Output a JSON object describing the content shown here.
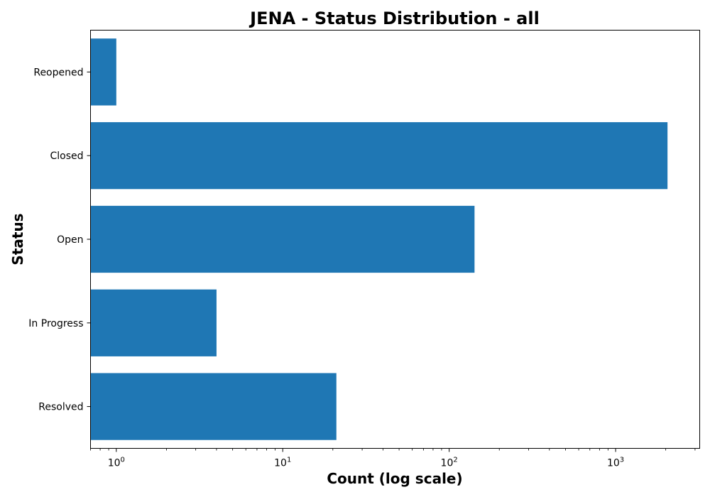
{
  "chart_data": {
    "type": "bar",
    "orientation": "horizontal",
    "title": "JENA - Status Distribution - all",
    "xlabel": "Count (log scale)",
    "ylabel": "Status",
    "x_scale": "log",
    "xlim": [
      0.7,
      3200
    ],
    "categories": [
      "Resolved",
      "In Progress",
      "Open",
      "Closed",
      "Reopened"
    ],
    "values": [
      21,
      4,
      142,
      2050,
      1
    ],
    "x_ticks": [
      {
        "base": "10",
        "exp": "0",
        "value": 1
      },
      {
        "base": "10",
        "exp": "1",
        "value": 10
      },
      {
        "base": "10",
        "exp": "2",
        "value": 100
      },
      {
        "base": "10",
        "exp": "3",
        "value": 1000
      }
    ],
    "bar_color": "#1f77b4",
    "grid": false,
    "legend": "none"
  }
}
